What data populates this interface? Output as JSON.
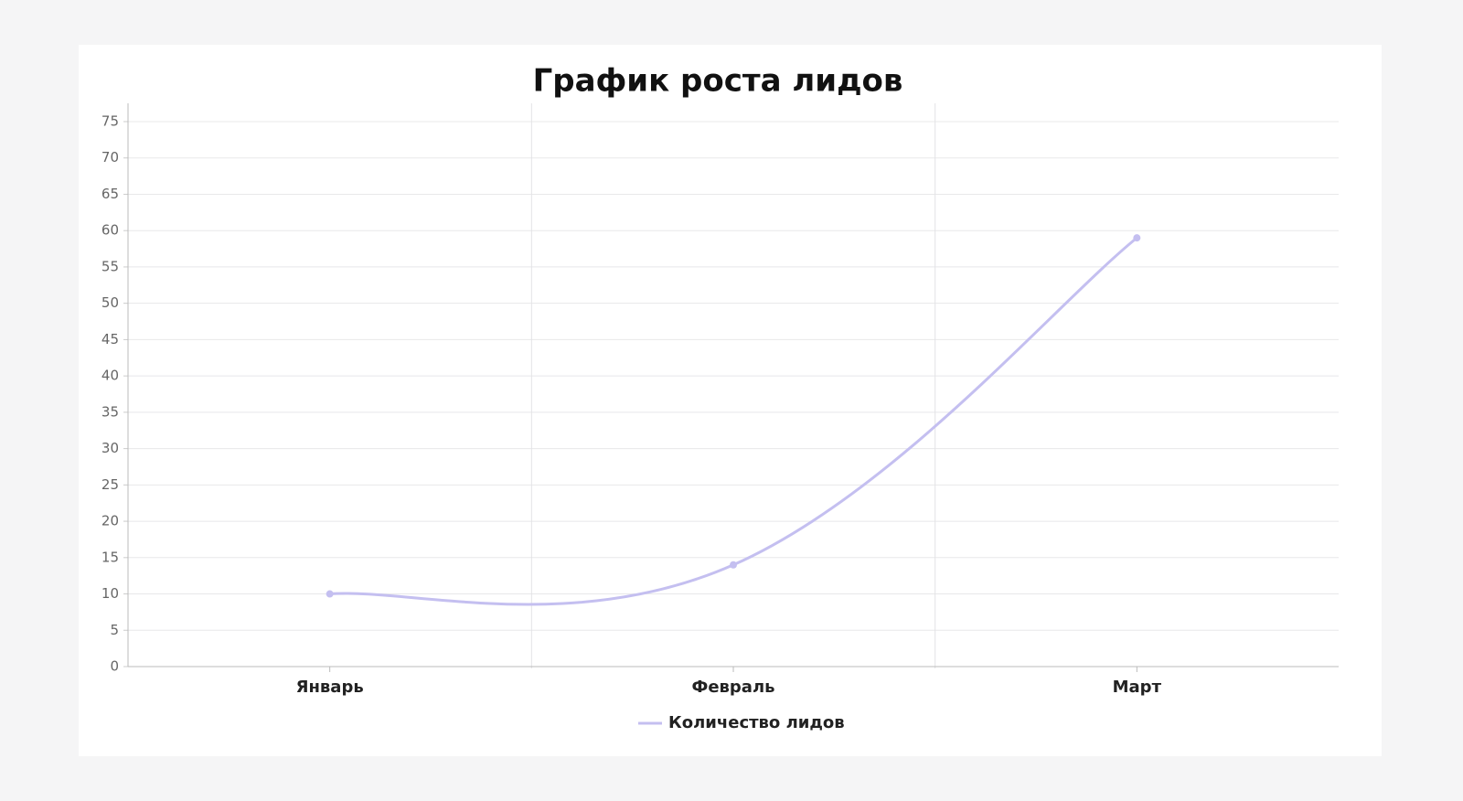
{
  "chart_data": {
    "type": "line",
    "title": "График роста лидов",
    "categories": [
      "Январь",
      "Февраль",
      "Март"
    ],
    "series": [
      {
        "name": "Количество лидов",
        "color": "#c4bff0",
        "values": [
          10,
          14,
          59
        ]
      }
    ],
    "ylim": [
      0,
      75
    ],
    "yticks": [
      0,
      5,
      10,
      15,
      20,
      25,
      30,
      35,
      40,
      45,
      50,
      55,
      60,
      65,
      70,
      75
    ],
    "grid": true,
    "legend": "bottom"
  }
}
